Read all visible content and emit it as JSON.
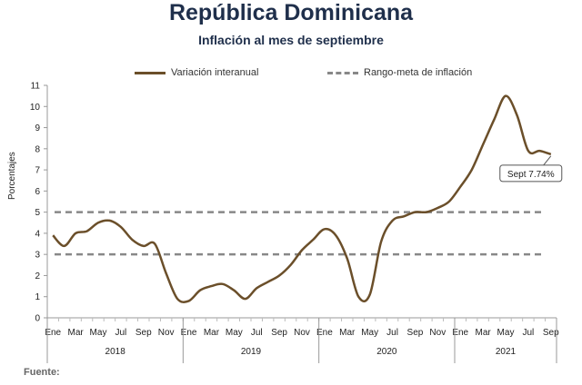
{
  "header": {
    "title": "República Dominicana",
    "subtitle": "Inflación al mes de septiembre"
  },
  "source_label": "Fuente:",
  "colors": {
    "series": "#6b4f2a",
    "target": "#888888",
    "title": "#1f2f4b"
  },
  "chart_data": {
    "type": "line",
    "title": "Inflación al mes de septiembre",
    "ylabel": "Porcentajes",
    "ylim": [
      0,
      11
    ],
    "yticks": [
      0,
      1,
      2,
      3,
      4,
      5,
      6,
      7,
      8,
      9,
      10,
      11
    ],
    "grid": false,
    "legend_position": "top",
    "x_month_labels": [
      "Ene",
      "Mar",
      "May",
      "Jul",
      "Sep",
      "Nov",
      "Ene",
      "Mar",
      "May",
      "Jul",
      "Sep",
      "Nov",
      "Ene",
      "Mar",
      "May",
      "Jul",
      "Sep",
      "Nov",
      "Ene",
      "Mar",
      "May",
      "Jul",
      "Sep"
    ],
    "x_year_labels": [
      "2018",
      "2019",
      "2020",
      "2021"
    ],
    "series": [
      {
        "name": "Variación interanual",
        "style": "solid",
        "x": [
          "2018-01",
          "2018-02",
          "2018-03",
          "2018-04",
          "2018-05",
          "2018-06",
          "2018-07",
          "2018-08",
          "2018-09",
          "2018-10",
          "2018-11",
          "2018-12",
          "2019-01",
          "2019-02",
          "2019-03",
          "2019-04",
          "2019-05",
          "2019-06",
          "2019-07",
          "2019-08",
          "2019-09",
          "2019-10",
          "2019-11",
          "2019-12",
          "2020-01",
          "2020-02",
          "2020-03",
          "2020-04",
          "2020-05",
          "2020-06",
          "2020-07",
          "2020-08",
          "2020-09",
          "2020-10",
          "2020-11",
          "2020-12",
          "2021-01",
          "2021-02",
          "2021-03",
          "2021-04",
          "2021-05",
          "2021-06",
          "2021-07",
          "2021-08",
          "2021-09"
        ],
        "values": [
          3.9,
          3.4,
          4.0,
          4.1,
          4.5,
          4.6,
          4.3,
          3.7,
          3.4,
          3.5,
          2.1,
          0.9,
          0.8,
          1.3,
          1.5,
          1.6,
          1.3,
          0.9,
          1.4,
          1.7,
          2.0,
          2.5,
          3.2,
          3.7,
          4.2,
          3.9,
          2.8,
          1.0,
          1.1,
          3.6,
          4.6,
          4.8,
          5.0,
          5.0,
          5.2,
          5.5,
          6.2,
          7.0,
          8.2,
          9.4,
          10.5,
          9.6,
          7.9,
          7.9,
          7.74
        ]
      },
      {
        "name": "Rango-meta de inflación",
        "style": "dashed",
        "upper": 5,
        "lower": 3
      }
    ],
    "annotations": [
      {
        "x": "2021-09",
        "text": "Sept 7.74%"
      }
    ]
  }
}
